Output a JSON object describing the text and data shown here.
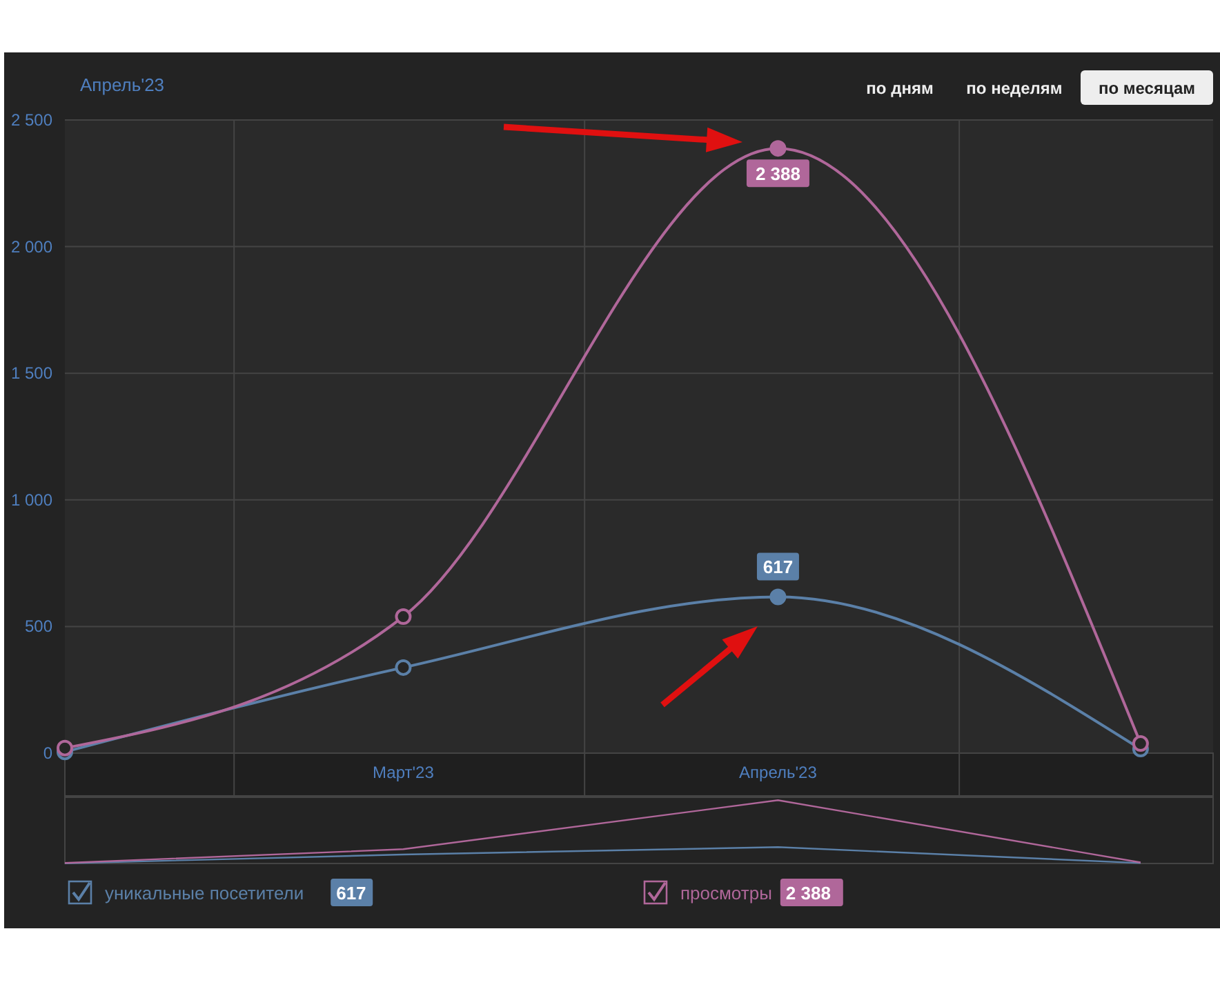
{
  "chart_data": {
    "type": "line",
    "title": "Апрель'23",
    "x": [
      "2023-02",
      "2023-03",
      "2023-04",
      "2023-05"
    ],
    "xlim": [
      "2023-02-01",
      "2023-05-07"
    ],
    "xticks": [
      {
        "value": "2023-02-15",
        "label": null
      },
      {
        "value": "2023-03",
        "label": "Март'23"
      },
      {
        "value": "2023-03-16",
        "label": null
      },
      {
        "value": "2023-04",
        "label": "Апрель'23"
      },
      {
        "value": "2023-04-16",
        "label": null
      }
    ],
    "ylim": [
      0,
      2500
    ],
    "yticks": [
      0,
      500,
      {
        "value": 1000,
        "label": "1 000"
      },
      {
        "value": 1500,
        "label": "1 500"
      },
      {
        "value": 2000,
        "label": "2 000"
      },
      {
        "value": 2500,
        "label": "2 500"
      }
    ],
    "series": [
      {
        "name": "уникальные посетители",
        "color": "#5b80a8",
        "values": [
          5,
          338,
          617,
          16
        ],
        "value_labels": [
          null,
          null,
          "617",
          null
        ]
      },
      {
        "name": "просмотры",
        "color": "#b0679a",
        "values": [
          20,
          539,
          2388,
          38
        ],
        "value_labels": [
          null,
          null,
          "2 388",
          null
        ]
      }
    ],
    "annotations": [
      "по дням",
      "по неделям",
      "по месяцам"
    ],
    "grid": true,
    "legend": "bottom",
    "marker": "circle",
    "line_style": "solid"
  }
}
